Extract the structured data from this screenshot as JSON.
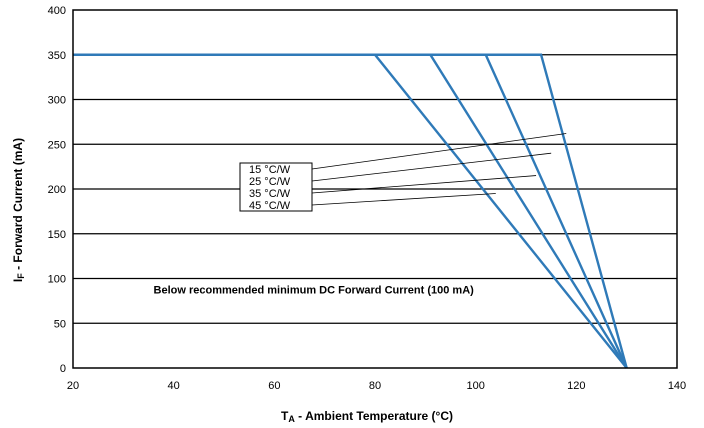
{
  "chart_data": {
    "type": "line",
    "xlabel": "T_A - Ambient Temperature (°C)",
    "xlabel_main": "T",
    "xlabel_sub": "A",
    "xlabel_rest": " - Ambient Temperature  (",
    "xlabel_unit": "°C)",
    "ylabel_main": "I",
    "ylabel_sub": "F",
    "ylabel_rest": " - Forward Current (mA)",
    "xlim": [
      20,
      140
    ],
    "ylim": [
      0,
      400
    ],
    "x_ticks": [
      20,
      40,
      60,
      80,
      100,
      120,
      140
    ],
    "y_ticks": [
      0,
      50,
      100,
      150,
      200,
      250,
      300,
      350,
      400
    ],
    "grid": "horizontal",
    "line_color": "#2f7ab8",
    "series": [
      {
        "name": "45 °C/W",
        "x": [
          20,
          80,
          130
        ],
        "y": [
          350,
          350,
          0
        ]
      },
      {
        "name": "35 °C/W",
        "x": [
          20,
          91,
          130
        ],
        "y": [
          350,
          350,
          0
        ]
      },
      {
        "name": "25 °C/W",
        "x": [
          20,
          102,
          130
        ],
        "y": [
          350,
          350,
          0
        ]
      },
      {
        "name": "15 °C/W",
        "x": [
          20,
          113,
          130
        ],
        "y": [
          350,
          350,
          0
        ]
      }
    ],
    "legend_items": [
      {
        "label": "15 °C/W",
        "target_x": 118,
        "target_y": 262
      },
      {
        "label": "25 °C/W",
        "target_x": 115,
        "target_y": 240
      },
      {
        "label": "35 °C/W",
        "target_x": 112,
        "target_y": 215
      },
      {
        "label": "45 °C/W",
        "target_x": 104,
        "target_y": 195
      }
    ],
    "annotation": "Below recommended minimum  DC Forward Current (100 mA)",
    "annotation_pos": [
      36,
      83
    ]
  }
}
